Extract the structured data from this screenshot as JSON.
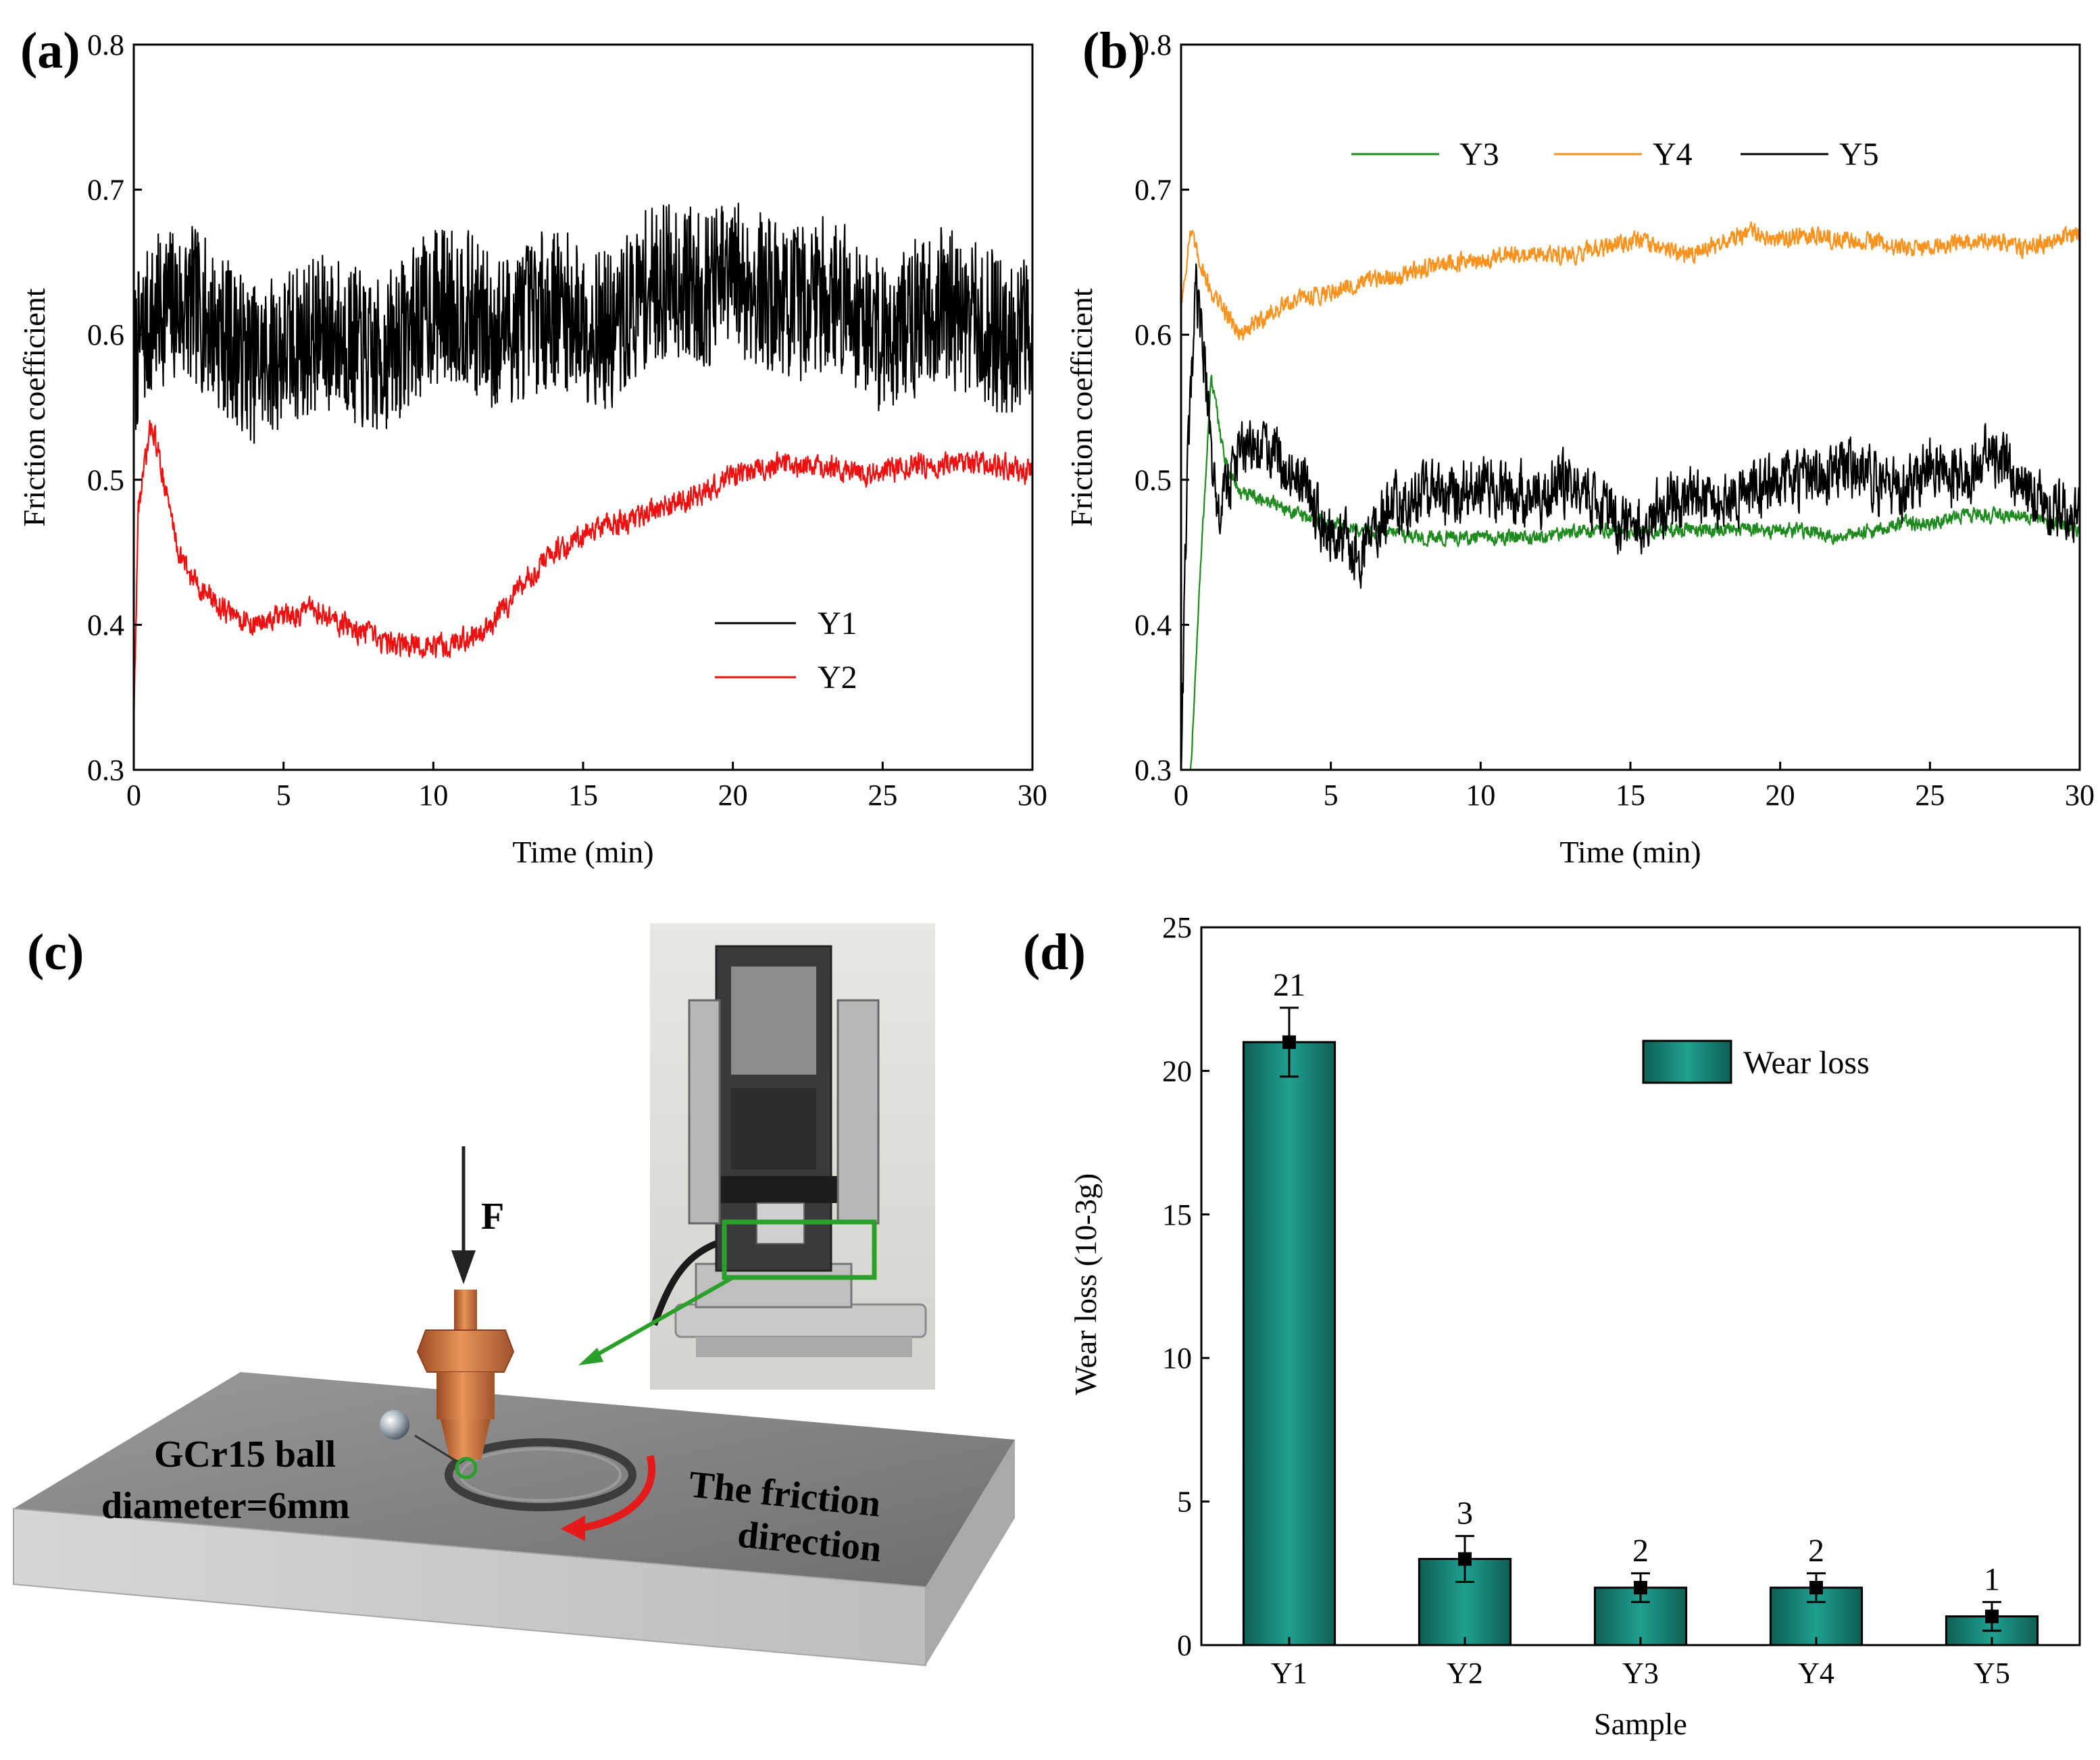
{
  "chart_data": [
    {
      "panel": "(a)",
      "type": "line",
      "xlabel": "Time (min)",
      "ylabel": "Friction coefficient",
      "xlim": [
        0,
        30
      ],
      "ylim": [
        0.3,
        0.8
      ],
      "xticks": [
        "0",
        "5",
        "10",
        "15",
        "20",
        "25",
        "30"
      ],
      "yticks": [
        "0.3",
        "0.4",
        "0.5",
        "0.6",
        "0.7",
        "0.8"
      ],
      "legend": "bottom-right",
      "series": [
        {
          "name": "Y1",
          "color": "#000000",
          "noise": 0.055,
          "x": [
            0,
            0.3,
            1,
            2,
            3,
            4,
            5,
            6,
            7,
            8,
            9,
            10,
            11,
            12,
            13,
            14,
            15,
            16,
            17,
            18,
            19,
            20,
            21,
            22,
            23,
            24,
            25,
            26,
            27,
            28,
            29,
            30
          ],
          "y": [
            0.58,
            0.6,
            0.62,
            0.62,
            0.6,
            0.58,
            0.59,
            0.6,
            0.6,
            0.58,
            0.6,
            0.62,
            0.62,
            0.6,
            0.61,
            0.62,
            0.61,
            0.6,
            0.63,
            0.64,
            0.63,
            0.64,
            0.63,
            0.62,
            0.63,
            0.62,
            0.6,
            0.61,
            0.62,
            0.61,
            0.6,
            0.6
          ]
        },
        {
          "name": "Y2",
          "color": "#ee1111",
          "noise": 0.012,
          "x": [
            0,
            0.15,
            0.6,
            1,
            1.5,
            2,
            3,
            4,
            5,
            6,
            7,
            8,
            9,
            10,
            11,
            12,
            13,
            14,
            15,
            16,
            17,
            18,
            19,
            20,
            21,
            22,
            23,
            24,
            25,
            26,
            27,
            28,
            29,
            30
          ],
          "y": [
            0.33,
            0.48,
            0.54,
            0.5,
            0.45,
            0.43,
            0.41,
            0.4,
            0.405,
            0.41,
            0.4,
            0.39,
            0.385,
            0.385,
            0.39,
            0.4,
            0.43,
            0.45,
            0.46,
            0.47,
            0.475,
            0.485,
            0.49,
            0.505,
            0.51,
            0.51,
            0.51,
            0.505,
            0.505,
            0.51,
            0.51,
            0.51,
            0.51,
            0.505
          ]
        }
      ]
    },
    {
      "panel": "(b)",
      "type": "line",
      "xlabel": "Time (min)",
      "ylabel": "Friction coefficient",
      "xlim": [
        0,
        30
      ],
      "ylim": [
        0.3,
        0.8
      ],
      "xticks": [
        "0",
        "5",
        "10",
        "15",
        "20",
        "25",
        "30"
      ],
      "yticks": [
        "0.3",
        "0.4",
        "0.5",
        "0.6",
        "0.7",
        "0.8"
      ],
      "legend": "top-right",
      "series": [
        {
          "name": "Y3",
          "color": "#1f8a1f",
          "noise": 0.007,
          "x": [
            0,
            0.3,
            0.6,
            1,
            1.5,
            2,
            3,
            4,
            5,
            6,
            7,
            8,
            9,
            10,
            11,
            12,
            13,
            14,
            15,
            16,
            17,
            18,
            19,
            20,
            21,
            22,
            23,
            24,
            25,
            26,
            27,
            28,
            29,
            30
          ],
          "y": [
            0.3,
            0.29,
            0.42,
            0.57,
            0.51,
            0.49,
            0.485,
            0.475,
            0.47,
            0.465,
            0.465,
            0.46,
            0.46,
            0.46,
            0.46,
            0.46,
            0.465,
            0.465,
            0.465,
            0.465,
            0.465,
            0.465,
            0.465,
            0.465,
            0.465,
            0.46,
            0.465,
            0.47,
            0.47,
            0.475,
            0.475,
            0.475,
            0.47,
            0.465
          ]
        },
        {
          "name": "Y4",
          "color": "#f7931e",
          "noise": 0.009,
          "x": [
            0,
            0.3,
            1,
            2,
            3,
            4,
            5,
            6,
            7,
            8,
            9,
            10,
            11,
            12,
            13,
            14,
            15,
            16,
            17,
            18,
            19,
            20,
            21,
            22,
            23,
            24,
            25,
            26,
            27,
            28,
            29,
            30
          ],
          "y": [
            0.62,
            0.67,
            0.63,
            0.6,
            0.615,
            0.625,
            0.63,
            0.635,
            0.64,
            0.645,
            0.65,
            0.65,
            0.655,
            0.655,
            0.655,
            0.66,
            0.665,
            0.66,
            0.655,
            0.665,
            0.67,
            0.665,
            0.67,
            0.665,
            0.665,
            0.66,
            0.66,
            0.665,
            0.665,
            0.66,
            0.665,
            0.67
          ]
        },
        {
          "name": "Y5",
          "color": "#000000",
          "noise": 0.03,
          "x": [
            0,
            0.2,
            0.5,
            0.8,
            1.2,
            1.6,
            2,
            3,
            4,
            5,
            6,
            7,
            8,
            9,
            10,
            11,
            12,
            13,
            14,
            15,
            16,
            17,
            18,
            19,
            20,
            21,
            22,
            23,
            24,
            25,
            26,
            27,
            28,
            29,
            30
          ],
          "y": [
            0.3,
            0.5,
            0.63,
            0.58,
            0.47,
            0.5,
            0.52,
            0.52,
            0.5,
            0.46,
            0.45,
            0.48,
            0.49,
            0.49,
            0.5,
            0.49,
            0.49,
            0.5,
            0.48,
            0.47,
            0.48,
            0.49,
            0.49,
            0.49,
            0.5,
            0.5,
            0.51,
            0.5,
            0.49,
            0.51,
            0.5,
            0.52,
            0.5,
            0.48,
            0.48
          ]
        }
      ]
    },
    {
      "panel": "(d)",
      "type": "bar",
      "xlabel": "Sample",
      "ylabel": "Wear loss (10-3g)",
      "categories": [
        "Y1",
        "Y2",
        "Y3",
        "Y4",
        "Y5"
      ],
      "values": [
        21,
        3,
        2,
        2,
        1
      ],
      "value_labels": [
        "21",
        "3",
        "2",
        "2",
        "1"
      ],
      "errors": [
        1.2,
        0.8,
        0.5,
        0.5,
        0.5
      ],
      "ylim": [
        0,
        25
      ],
      "yticks": [
        "0",
        "5",
        "10",
        "15",
        "20",
        "25"
      ],
      "legend": "top-right",
      "legend_label": "Wear loss",
      "bar_color": "#137a6e"
    }
  ],
  "panels": {
    "a": {
      "letter": "(a)"
    },
    "b": {
      "letter": "(b)"
    },
    "c": {
      "letter": "(c)"
    },
    "d": {
      "letter": "(d)"
    }
  },
  "schematic": {
    "force_label": "F",
    "ball_label_line1": "GCr15 ball",
    "ball_label_line2": "diameter=6mm",
    "direction_label_line1": "The friction",
    "direction_label_line2": "direction",
    "colors": {
      "pin": "#c87040",
      "plate_top": "#8a8a8a",
      "highlight": "#2aa02a",
      "arrow": "#e51a1a"
    }
  }
}
